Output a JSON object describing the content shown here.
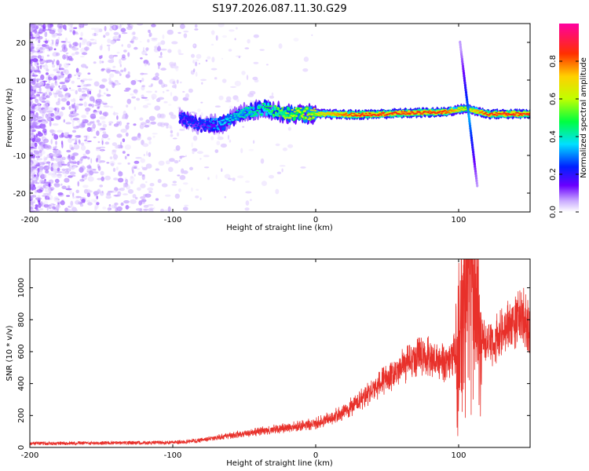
{
  "chart_data": [
    {
      "type": "heatmap",
      "title": "S197.2026.087.11.30.G29",
      "xlabel": "Height of straight line (km)",
      "ylabel": "Frequency (Hz)",
      "xlim": [
        -200,
        150
      ],
      "ylim": [
        -25,
        25
      ],
      "xticks": [
        -200,
        -100,
        0,
        100
      ],
      "yticks": [
        20,
        10,
        0,
        -10,
        -20
      ],
      "colorbar": {
        "label": "Normalized spectral amplitude",
        "range": [
          0,
          1
        ],
        "ticks": [
          0.0,
          0.2,
          0.4,
          0.6,
          0.8
        ],
        "colormap": [
          "#ffffff",
          "#c8a8ff",
          "#6a00ff",
          "#0020ff",
          "#00e0ff",
          "#00ff40",
          "#c0ff00",
          "#ffd000",
          "#ff3000",
          "#ff00a0"
        ]
      },
      "ridge": {
        "points": [
          {
            "x": -95,
            "y": 0.0,
            "amp": 0.35
          },
          {
            "x": -80,
            "y": -2.0,
            "amp": 0.35
          },
          {
            "x": -65,
            "y": -1.5,
            "amp": 0.45
          },
          {
            "x": -50,
            "y": 1.5,
            "amp": 0.5
          },
          {
            "x": -35,
            "y": 2.5,
            "amp": 0.55
          },
          {
            "x": -20,
            "y": 1.0,
            "amp": 0.65
          },
          {
            "x": 0,
            "y": 1.0,
            "amp": 0.75
          },
          {
            "x": 30,
            "y": 0.8,
            "amp": 0.9
          },
          {
            "x": 60,
            "y": 1.2,
            "amp": 0.9
          },
          {
            "x": 90,
            "y": 1.5,
            "amp": 0.9
          },
          {
            "x": 105,
            "y": 2.5,
            "amp": 0.7
          },
          {
            "x": 120,
            "y": 1.0,
            "amp": 0.9
          },
          {
            "x": 150,
            "y": 1.0,
            "amp": 0.9
          }
        ],
        "spike": {
          "x_top": 101,
          "y_top": 20,
          "x_bottom": 113,
          "y_bottom": -18
        }
      }
    },
    {
      "type": "line",
      "xlabel": "Height of straight line (km)",
      "ylabel": "SNR (10 * v/v)",
      "xlim": [
        -200,
        150
      ],
      "ylim": [
        0,
        1180
      ],
      "xticks": [
        -200,
        -100,
        0,
        100
      ],
      "yticks": [
        0,
        200,
        400,
        600,
        800,
        1000
      ],
      "color": "#e8302a",
      "series": [
        {
          "name": "SNR",
          "envelope": [
            {
              "x": -200,
              "y": 25
            },
            {
              "x": -150,
              "y": 28
            },
            {
              "x": -100,
              "y": 30
            },
            {
              "x": -80,
              "y": 45
            },
            {
              "x": -60,
              "y": 75
            },
            {
              "x": -40,
              "y": 100
            },
            {
              "x": -20,
              "y": 125
            },
            {
              "x": 0,
              "y": 150
            },
            {
              "x": 20,
              "y": 220
            },
            {
              "x": 40,
              "y": 360
            },
            {
              "x": 60,
              "y": 500
            },
            {
              "x": 75,
              "y": 580
            },
            {
              "x": 90,
              "y": 530
            },
            {
              "x": 100,
              "y": 620
            },
            {
              "x": 105,
              "y": 900
            },
            {
              "x": 108,
              "y": 1100
            },
            {
              "x": 112,
              "y": 750
            },
            {
              "x": 120,
              "y": 620
            },
            {
              "x": 135,
              "y": 760
            },
            {
              "x": 145,
              "y": 820
            },
            {
              "x": 150,
              "y": 760
            }
          ]
        }
      ]
    }
  ]
}
